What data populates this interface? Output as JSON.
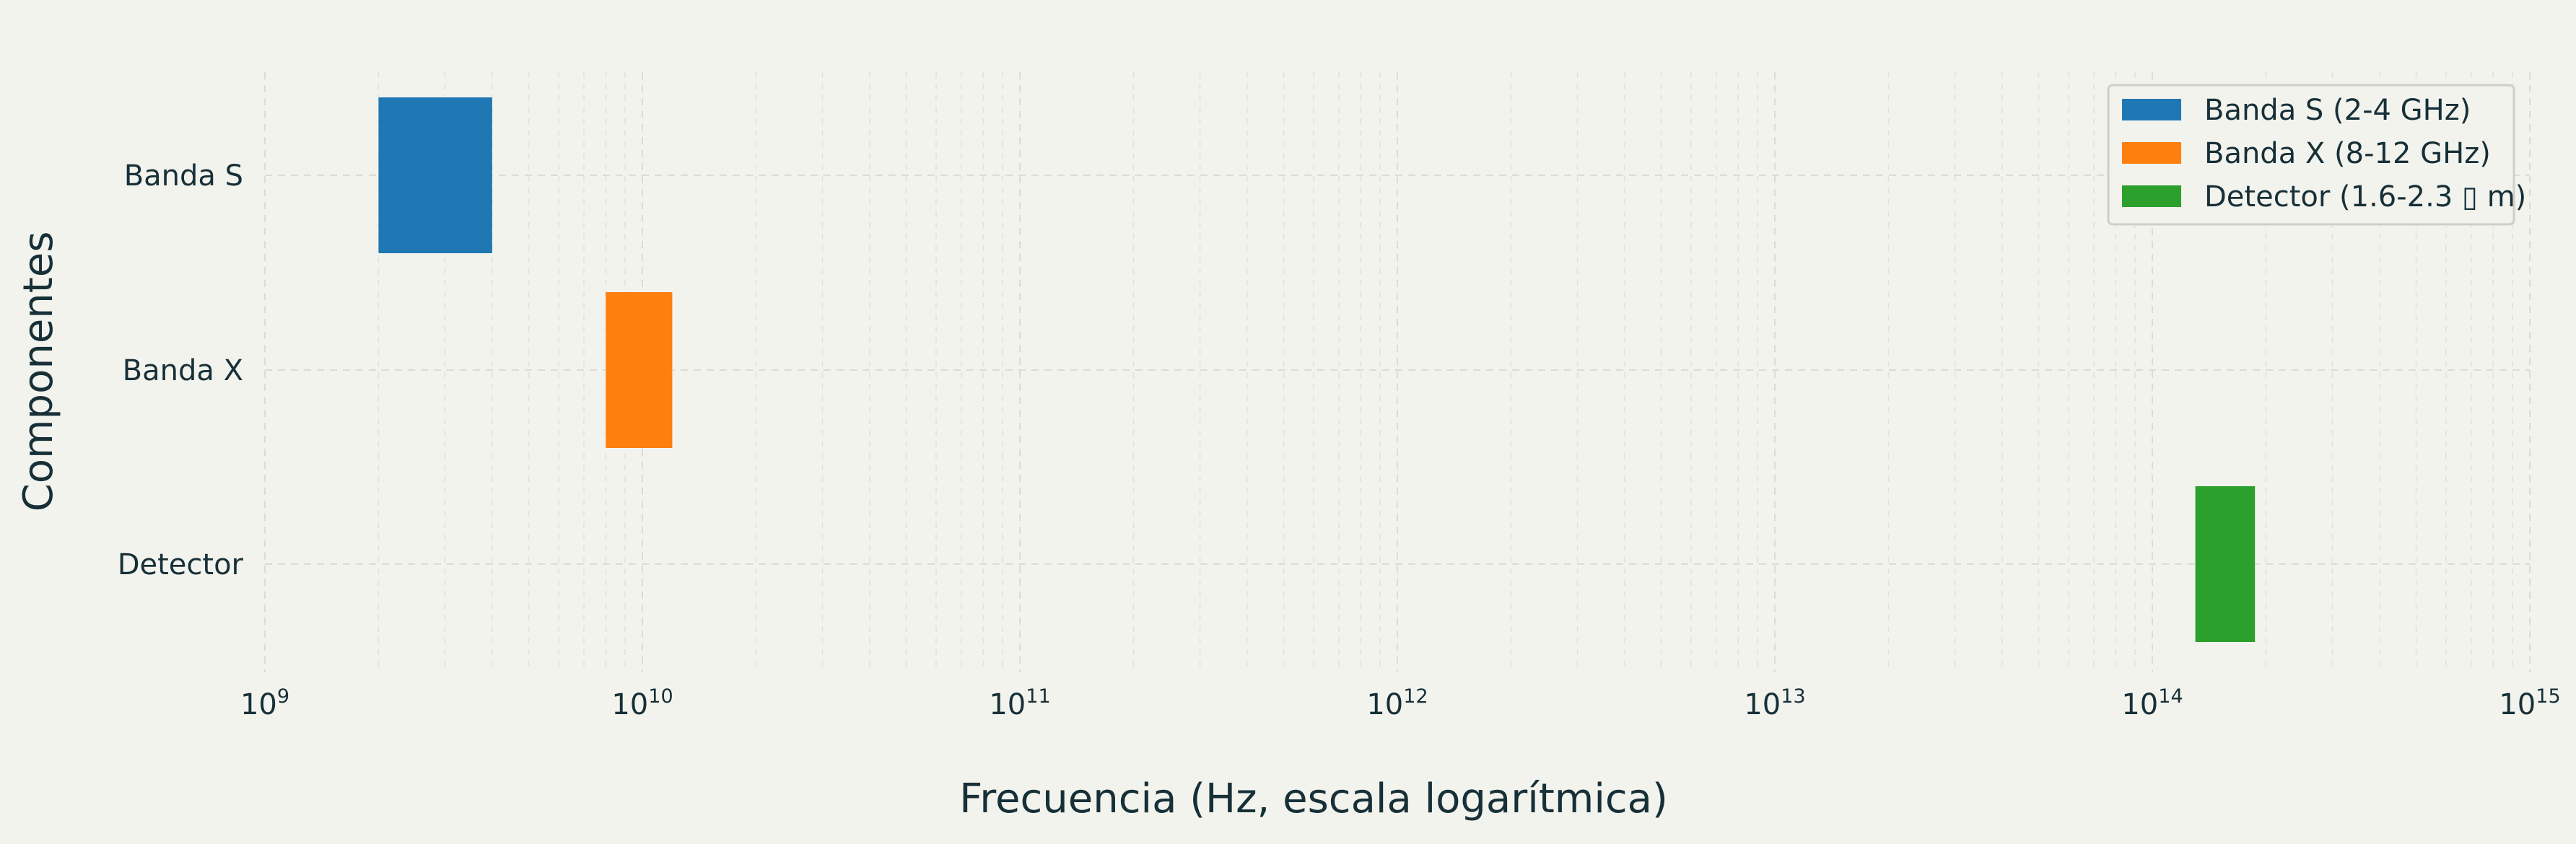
{
  "chart_data": {
    "type": "bar",
    "orientation": "horizontal",
    "xscale": "log",
    "xlim": [
      1000000000.0,
      1000000000000000.0
    ],
    "xlabel": "Frecuencia (Hz, escala logarítmica)",
    "ylabel": "Componentes",
    "xticks": [
      {
        "base": "10",
        "exp": "9"
      },
      {
        "base": "10",
        "exp": "10"
      },
      {
        "base": "10",
        "exp": "11"
      },
      {
        "base": "10",
        "exp": "12"
      },
      {
        "base": "10",
        "exp": "13"
      },
      {
        "base": "10",
        "exp": "14"
      },
      {
        "base": "10",
        "exp": "15"
      }
    ],
    "categories": [
      "Banda S",
      "Banda X",
      "Detector"
    ],
    "series": [
      {
        "name": "Banda S (2-4 GHz)",
        "category": "Banda S",
        "start": 2000000000.0,
        "end": 4000000000.0,
        "color": "#1f77b4"
      },
      {
        "name": "Banda X (8-12 GHz)",
        "category": "Banda X",
        "start": 8000000000.0,
        "end": 12000000000.0,
        "color": "#ff7f0e"
      },
      {
        "name": "Detector (1.6-2.3 ▯ m)",
        "category": "Detector",
        "start": 130000000000000.0,
        "end": 187000000000000.0,
        "color": "#2ca02c"
      }
    ],
    "grid": true,
    "legend_position": "top-right"
  }
}
